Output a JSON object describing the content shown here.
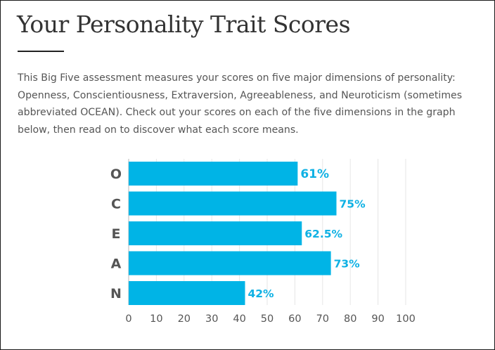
{
  "page": {
    "title": "Your Personality Trait Scores",
    "intro": "This Big Five assessment measures your scores on five major dimensions of personality: Openness, Conscientiousness, Extraversion, Agreeableness, and Neuroticism (sometimes abbreviated OCEAN). Check out your scores on each of the five dimensions in the graph below, then read on to discover what each score means."
  },
  "chart_data": {
    "type": "bar",
    "orientation": "horizontal",
    "categories": [
      "O",
      "C",
      "E",
      "A",
      "N"
    ],
    "values": [
      61,
      75,
      62.5,
      73,
      42
    ],
    "value_labels": [
      "61%",
      "75%",
      "62.5%",
      "73%",
      "42%"
    ],
    "xlim": [
      0,
      100
    ],
    "x_ticks": [
      0,
      10,
      20,
      30,
      40,
      50,
      60,
      70,
      80,
      90,
      100
    ],
    "grid": "vertical",
    "colors": {
      "bar": "#00b4e6",
      "value_label": "#0fb1e4",
      "grid": "#e6e6e6",
      "axis": "#cfcfcf"
    }
  }
}
